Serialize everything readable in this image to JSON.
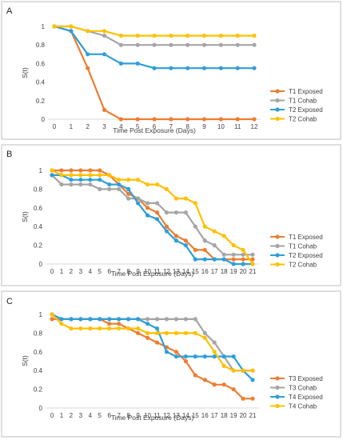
{
  "figure": {
    "panels": [
      "A",
      "B",
      "C"
    ]
  },
  "chart_data": [
    {
      "panel": "A",
      "type": "line",
      "xlabel": "Time Post Exposure (Days)",
      "ylabel": "S(t)",
      "xlim": [
        0,
        12
      ],
      "ylim": [
        0,
        1
      ],
      "x_ticks": [
        0,
        1,
        2,
        3,
        4,
        5,
        6,
        7,
        8,
        9,
        10,
        11,
        12
      ],
      "y_ticks": [
        "0",
        "0.2",
        "0.4",
        "0.6",
        "0.8",
        "1"
      ],
      "legend": "right",
      "series": [
        {
          "name": "T1 Exposed",
          "color": "#ed7d31",
          "x": [
            0,
            1,
            2,
            3,
            4,
            5,
            6,
            7,
            8,
            9,
            10,
            11,
            12
          ],
          "values": [
            1,
            0.95,
            0.55,
            0.1,
            0,
            0,
            0,
            0,
            0,
            0,
            0,
            0,
            0
          ]
        },
        {
          "name": "T1 Cohab",
          "color": "#a5a5a5",
          "x": [
            0,
            1,
            2,
            3,
            4,
            5,
            6,
            7,
            8,
            9,
            10,
            11,
            12
          ],
          "values": [
            1,
            1,
            0.95,
            0.9,
            0.8,
            0.8,
            0.8,
            0.8,
            0.8,
            0.8,
            0.8,
            0.8,
            0.8
          ]
        },
        {
          "name": "T2 Exposed",
          "color": "#2e9fd8",
          "x": [
            0,
            1,
            2,
            3,
            4,
            5,
            6,
            7,
            8,
            9,
            10,
            11,
            12
          ],
          "values": [
            1,
            0.95,
            0.7,
            0.7,
            0.6,
            0.6,
            0.55,
            0.55,
            0.55,
            0.55,
            0.55,
            0.55,
            0.55
          ]
        },
        {
          "name": "T2 Cohab",
          "color": "#ffc000",
          "x": [
            0,
            1,
            2,
            3,
            4,
            5,
            6,
            7,
            8,
            9,
            10,
            11,
            12
          ],
          "values": [
            1,
            1,
            0.95,
            0.95,
            0.9,
            0.9,
            0.9,
            0.9,
            0.9,
            0.9,
            0.9,
            0.9,
            0.9
          ]
        }
      ]
    },
    {
      "panel": "B",
      "type": "line",
      "xlabel": "Time Post Exposure (Days)",
      "ylabel": "S(t)",
      "xlim": [
        0,
        21
      ],
      "ylim": [
        0,
        1
      ],
      "x_ticks": [
        0,
        1,
        2,
        3,
        4,
        5,
        6,
        7,
        8,
        9,
        10,
        11,
        12,
        13,
        14,
        15,
        16,
        17,
        18,
        19,
        20,
        21
      ],
      "y_ticks": [
        "0",
        "0.2",
        "0.4",
        "0.6",
        "0.8",
        "1"
      ],
      "legend": "right",
      "series": [
        {
          "name": "T1 Exposed",
          "color": "#ed7d31",
          "x": [
            0,
            1,
            2,
            3,
            4,
            5,
            6,
            7,
            8,
            9,
            10,
            11,
            12,
            13,
            14,
            15,
            16,
            17,
            18,
            19,
            20,
            21
          ],
          "values": [
            1,
            1,
            1,
            1,
            1,
            1,
            0.95,
            0.85,
            0.75,
            0.7,
            0.6,
            0.55,
            0.4,
            0.3,
            0.25,
            0.15,
            0.15,
            0.05,
            0.05,
            0.05,
            0.05,
            0.05
          ]
        },
        {
          "name": "T1 Cohab",
          "color": "#a5a5a5",
          "x": [
            0,
            1,
            2,
            3,
            4,
            5,
            6,
            7,
            8,
            9,
            10,
            11,
            12,
            13,
            14,
            15,
            16,
            17,
            18,
            19,
            20,
            21
          ],
          "values": [
            0.95,
            0.85,
            0.85,
            0.85,
            0.85,
            0.8,
            0.8,
            0.8,
            0.7,
            0.7,
            0.65,
            0.65,
            0.55,
            0.55,
            0.55,
            0.4,
            0.25,
            0.2,
            0.1,
            0.1,
            0.1,
            0.1
          ]
        },
        {
          "name": "T2 Exposed",
          "color": "#2e9fd8",
          "x": [
            0,
            1,
            2,
            3,
            4,
            5,
            6,
            7,
            8,
            9,
            10,
            11,
            12,
            13,
            14,
            15,
            16,
            17,
            18,
            19,
            20,
            21
          ],
          "values": [
            0.95,
            0.95,
            0.9,
            0.9,
            0.9,
            0.9,
            0.85,
            0.85,
            0.8,
            0.65,
            0.52,
            0.48,
            0.35,
            0.25,
            0.2,
            0.05,
            0.05,
            0.05,
            0.05,
            0,
            0,
            0
          ]
        },
        {
          "name": "T2 Cohab",
          "color": "#ffc000",
          "x": [
            0,
            1,
            2,
            3,
            4,
            5,
            6,
            7,
            8,
            9,
            10,
            11,
            12,
            13,
            14,
            15,
            16,
            17,
            18,
            19,
            20,
            21
          ],
          "values": [
            1,
            0.95,
            0.95,
            0.95,
            0.95,
            0.95,
            0.95,
            0.9,
            0.9,
            0.9,
            0.85,
            0.85,
            0.8,
            0.7,
            0.7,
            0.65,
            0.4,
            0.35,
            0.3,
            0.2,
            0.15,
            0
          ]
        }
      ]
    },
    {
      "panel": "C",
      "type": "line",
      "xlabel": "Time Post Exposure (Days)",
      "ylabel": "S(t)",
      "xlim": [
        0,
        21
      ],
      "ylim": [
        0,
        1
      ],
      "x_ticks": [
        0,
        1,
        2,
        3,
        4,
        5,
        6,
        7,
        8,
        9,
        10,
        11,
        12,
        13,
        14,
        15,
        16,
        17,
        18,
        19,
        20,
        21
      ],
      "y_ticks": [
        "0",
        "0.2",
        "0.4",
        "0.6",
        "0.8",
        "1"
      ],
      "legend": "right",
      "series": [
        {
          "name": "T3 Exposed",
          "color": "#ed7d31",
          "x": [
            0,
            1,
            2,
            3,
            4,
            5,
            6,
            7,
            8,
            9,
            10,
            11,
            12,
            13,
            14,
            15,
            16,
            17,
            18,
            19,
            20,
            21
          ],
          "values": [
            0.95,
            0.95,
            0.95,
            0.95,
            0.95,
            0.95,
            0.9,
            0.9,
            0.85,
            0.8,
            0.75,
            0.7,
            0.65,
            0.6,
            0.5,
            0.35,
            0.3,
            0.25,
            0.25,
            0.2,
            0.1,
            0.1
          ]
        },
        {
          "name": "T3 Cohab",
          "color": "#a5a5a5",
          "x": [
            0,
            1,
            2,
            3,
            4,
            5,
            6,
            7,
            8,
            9,
            10,
            11,
            12,
            13,
            14,
            15,
            16,
            17,
            18,
            19,
            20,
            21
          ],
          "values": [
            1,
            0.95,
            0.95,
            0.95,
            0.95,
            0.95,
            0.95,
            0.95,
            0.95,
            0.95,
            0.95,
            0.95,
            0.95,
            0.95,
            0.95,
            0.95,
            0.8,
            0.7,
            0.55,
            0.4,
            0.4,
            0.4
          ]
        },
        {
          "name": "T4 Exposed",
          "color": "#2e9fd8",
          "x": [
            0,
            1,
            2,
            3,
            4,
            5,
            6,
            7,
            8,
            9,
            10,
            11,
            12,
            13,
            14,
            15,
            16,
            17,
            18,
            19,
            20,
            21
          ],
          "values": [
            1,
            0.95,
            0.95,
            0.95,
            0.95,
            0.95,
            0.95,
            0.95,
            0.95,
            0.95,
            0.9,
            0.85,
            0.6,
            0.55,
            0.55,
            0.55,
            0.55,
            0.55,
            0.55,
            0.55,
            0.4,
            0.3
          ]
        },
        {
          "name": "T4 Cohab",
          "color": "#ffc000",
          "x": [
            0,
            1,
            2,
            3,
            4,
            5,
            6,
            7,
            8,
            9,
            10,
            11,
            12,
            13,
            14,
            15,
            16,
            17,
            18,
            19,
            20,
            21
          ],
          "values": [
            1,
            0.9,
            0.85,
            0.85,
            0.85,
            0.85,
            0.85,
            0.85,
            0.85,
            0.85,
            0.8,
            0.8,
            0.8,
            0.8,
            0.8,
            0.8,
            0.75,
            0.6,
            0.45,
            0.4,
            0.4,
            0.4
          ]
        }
      ]
    }
  ]
}
